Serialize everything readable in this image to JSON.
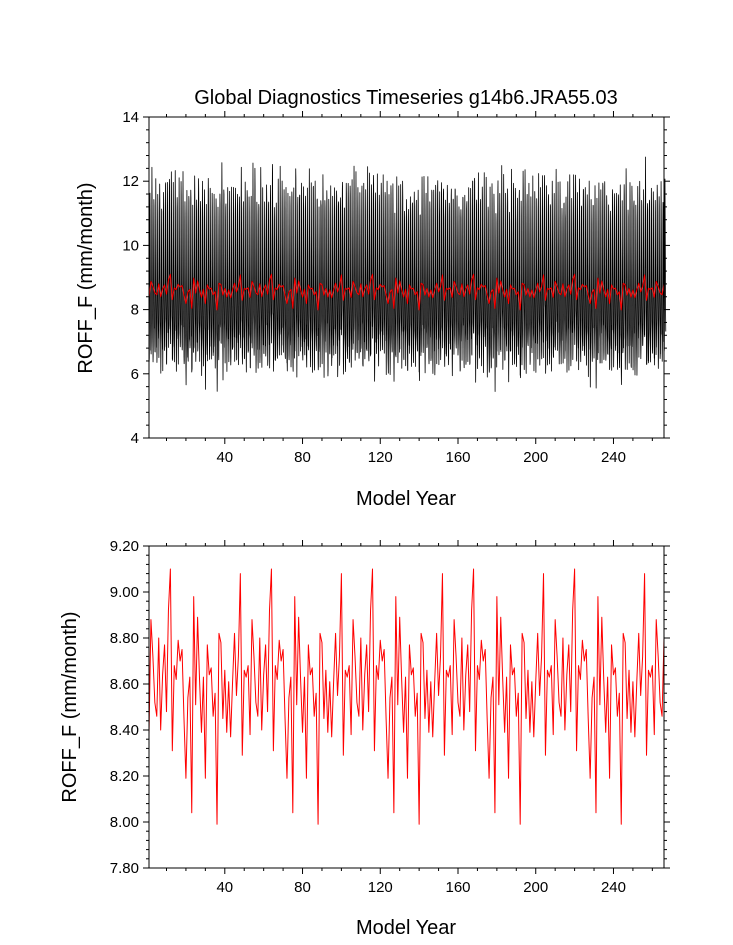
{
  "chart_data": [
    {
      "type": "line",
      "title": "Global Diagnostics Timeseries g14b6.JRA55.03",
      "xlabel": "Model Year",
      "ylabel": "ROFF_F (mm/month)",
      "xlim": [
        1,
        266
      ],
      "ylim": [
        4,
        14
      ],
      "xticks": [
        40,
        80,
        120,
        160,
        200,
        240
      ],
      "yticks": [
        4,
        6,
        8,
        10,
        12,
        14
      ],
      "ytick_labels": [
        "4",
        "6",
        "8",
        "10",
        "12",
        "14"
      ],
      "grid": false,
      "series": [
        {
          "kind": "monthly",
          "color": "#000000",
          "x": [
            1,
            266
          ],
          "y_range_approx": [
            5.9,
            12.7
          ],
          "seasonal_cycle": [
            7.1,
            6.6,
            6.9,
            7.8,
            9.2,
            10.9,
            11.9,
            11.4,
            10.0,
            8.6,
            7.6,
            7.3
          ]
        },
        {
          "kind": "annual_mean",
          "color": "#ff0000",
          "x": [
            1,
            266
          ],
          "y_range_approx": [
            8.0,
            9.1
          ]
        }
      ]
    },
    {
      "type": "line",
      "title": "",
      "xlabel": "Model Year",
      "ylabel": "ROFF_F (mm/month)",
      "xlim": [
        1,
        266
      ],
      "ylim": [
        7.8,
        9.2
      ],
      "xticks": [
        40,
        80,
        120,
        160,
        200,
        240
      ],
      "yticks": [
        7.8,
        8.0,
        8.2,
        8.4,
        8.6,
        8.8,
        9.0,
        9.2
      ],
      "ytick_labels": [
        "7.80",
        "8.00",
        "8.20",
        "8.40",
        "8.60",
        "8.80",
        "9.00",
        "9.20"
      ],
      "grid": false,
      "series": [
        {
          "kind": "annual_mean",
          "color": "#ff0000",
          "x_start": 1,
          "x_step": 1,
          "cycle_length": 52,
          "cycle_values": [
            8.38,
            8.88,
            8.72,
            8.52,
            8.46,
            8.8,
            8.4,
            8.64,
            8.77,
            8.48,
            8.92,
            9.1,
            8.31,
            8.68,
            8.62,
            8.79,
            8.7,
            8.75,
            8.45,
            8.19,
            8.54,
            8.63,
            8.04,
            8.98,
            8.51,
            8.89,
            8.62,
            8.39,
            8.63,
            8.19,
            8.77,
            8.64,
            8.67,
            8.46,
            8.56,
            7.99,
            8.82,
            8.78,
            8.45,
            8.66,
            8.39,
            8.61,
            8.37,
            8.61,
            8.82,
            8.55,
            8.72,
            9.08,
            8.29,
            8.66,
            8.63,
            8.68
          ],
          "y_range_approx": [
            7.98,
            9.11
          ]
        }
      ]
    }
  ]
}
